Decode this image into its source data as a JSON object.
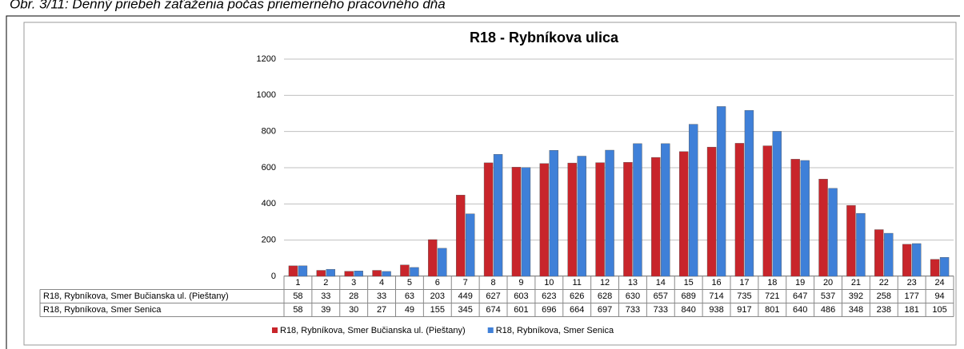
{
  "caption": "Obr. 3/11: Denný priebeh zaťaženia počas priemerného pracovného dňa",
  "chart_data": {
    "type": "bar",
    "title": "R18 - Rybníkova ulica",
    "categories": [
      "1",
      "2",
      "3",
      "4",
      "5",
      "6",
      "7",
      "8",
      "9",
      "10",
      "11",
      "12",
      "13",
      "14",
      "15",
      "16",
      "17",
      "18",
      "19",
      "20",
      "21",
      "22",
      "23",
      "24"
    ],
    "series": [
      {
        "name": "R18, Rybníkova, Smer Bučianska ul. (Pieštany)",
        "color": "#c8252b",
        "values": [
          58,
          33,
          28,
          33,
          63,
          203,
          449,
          627,
          603,
          623,
          626,
          628,
          630,
          657,
          689,
          714,
          735,
          721,
          647,
          537,
          392,
          258,
          177,
          94
        ]
      },
      {
        "name": "R18, Rybníkova,  Smer Senica",
        "color": "#3f80d8",
        "values": [
          58,
          39,
          30,
          27,
          49,
          155,
          345,
          674,
          601,
          696,
          664,
          697,
          733,
          733,
          840,
          938,
          917,
          801,
          640,
          486,
          348,
          238,
          181,
          105
        ]
      }
    ],
    "ylim": [
      0,
      1200
    ],
    "yticks": [
      0,
      200,
      400,
      600,
      800,
      1000,
      1200
    ],
    "grid": true,
    "legend": "bottom"
  }
}
